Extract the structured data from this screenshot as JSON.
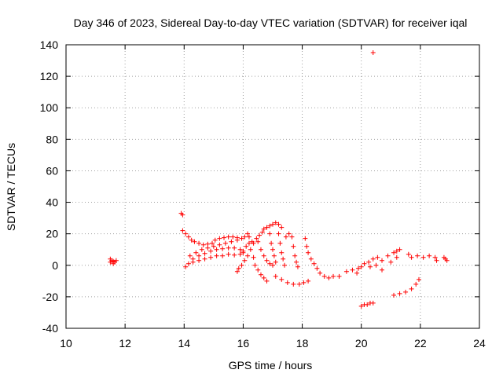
{
  "chart_data": {
    "type": "scatter",
    "title": "Day 346 of 2023, Sidereal Day-to-day VTEC variation (SDTVAR) for receiver iqal",
    "xlabel": "GPS time / hours",
    "ylabel": "SDTVAR / TECUs",
    "xlim": [
      10,
      24
    ],
    "ylim": [
      -40,
      140
    ],
    "xticks": [
      10,
      12,
      14,
      16,
      18,
      20,
      22,
      24
    ],
    "yticks": [
      -40,
      -20,
      0,
      20,
      40,
      60,
      80,
      100,
      120,
      140
    ],
    "grid": true,
    "marker": "plus",
    "color": "#ff0000",
    "series": [
      {
        "points": [
          [
            11.5,
            2
          ],
          [
            11.55,
            3
          ],
          [
            11.6,
            1
          ],
          [
            11.65,
            2
          ],
          [
            11.7,
            3
          ],
          [
            11.5,
            4
          ],
          [
            11.6,
            2.5
          ],
          [
            13.9,
            33
          ],
          [
            13.95,
            32
          ],
          [
            20.4,
            135
          ],
          [
            13.95,
            22
          ],
          [
            14.05,
            20
          ],
          [
            14.15,
            18
          ],
          [
            14.25,
            16
          ],
          [
            14.35,
            15
          ],
          [
            14.5,
            14
          ],
          [
            14.65,
            13
          ],
          [
            14.8,
            13.5
          ],
          [
            14.95,
            14
          ],
          [
            15.05,
            16
          ],
          [
            15.2,
            17
          ],
          [
            15.35,
            17.5
          ],
          [
            15.5,
            18
          ],
          [
            15.65,
            18
          ],
          [
            15.8,
            17.5
          ],
          [
            15.95,
            17
          ],
          [
            16.05,
            18
          ],
          [
            16.15,
            20
          ],
          [
            16.2,
            18
          ],
          [
            14.2,
            6
          ],
          [
            14.4,
            8
          ],
          [
            14.6,
            10
          ],
          [
            14.8,
            11
          ],
          [
            15.0,
            12
          ],
          [
            15.2,
            13
          ],
          [
            15.4,
            14
          ],
          [
            15.6,
            15
          ],
          [
            15.8,
            16
          ],
          [
            14.3,
            4
          ],
          [
            14.5,
            6
          ],
          [
            14.7,
            7.5
          ],
          [
            14.9,
            9
          ],
          [
            15.1,
            10
          ],
          [
            15.3,
            10.5
          ],
          [
            15.5,
            11
          ],
          [
            15.7,
            11
          ],
          [
            15.9,
            10
          ],
          [
            16.0,
            8
          ],
          [
            14.05,
            -1
          ],
          [
            14.15,
            1
          ],
          [
            14.3,
            2
          ],
          [
            14.5,
            3
          ],
          [
            14.7,
            4
          ],
          [
            14.9,
            5
          ],
          [
            15.1,
            6
          ],
          [
            15.3,
            6
          ],
          [
            15.5,
            7
          ],
          [
            15.7,
            6.5
          ],
          [
            15.9,
            7
          ],
          [
            16.0,
            9
          ],
          [
            16.1,
            12
          ],
          [
            16.2,
            14
          ],
          [
            16.3,
            15
          ],
          [
            15.8,
            -4
          ],
          [
            15.85,
            -2
          ],
          [
            15.95,
            0
          ],
          [
            16.05,
            3
          ],
          [
            16.15,
            6
          ],
          [
            16.25,
            10
          ],
          [
            16.35,
            14
          ],
          [
            16.45,
            17
          ],
          [
            16.55,
            19
          ],
          [
            16.65,
            21
          ],
          [
            16.7,
            23
          ],
          [
            16.8,
            24
          ],
          [
            16.9,
            25
          ],
          [
            17.0,
            26
          ],
          [
            17.1,
            27
          ],
          [
            17.2,
            26
          ],
          [
            17.3,
            24
          ],
          [
            16.35,
            5
          ],
          [
            16.4,
            0
          ],
          [
            16.5,
            -3
          ],
          [
            16.6,
            -6
          ],
          [
            16.7,
            -8
          ],
          [
            16.8,
            -10
          ],
          [
            16.5,
            15
          ],
          [
            16.6,
            10
          ],
          [
            16.7,
            6
          ],
          [
            16.8,
            3
          ],
          [
            16.9,
            1
          ],
          [
            17.0,
            0
          ],
          [
            16.9,
            20
          ],
          [
            16.95,
            14
          ],
          [
            17.0,
            10
          ],
          [
            17.05,
            6
          ],
          [
            17.1,
            2
          ],
          [
            17.2,
            20
          ],
          [
            17.25,
            14
          ],
          [
            17.3,
            8
          ],
          [
            17.35,
            4
          ],
          [
            17.4,
            0
          ],
          [
            17.45,
            18
          ],
          [
            17.55,
            20
          ],
          [
            17.65,
            18
          ],
          [
            17.7,
            12
          ],
          [
            17.75,
            6
          ],
          [
            17.8,
            2
          ],
          [
            17.85,
            -1
          ],
          [
            17.1,
            -7
          ],
          [
            17.3,
            -9
          ],
          [
            17.5,
            -11
          ],
          [
            17.7,
            -12
          ],
          [
            17.9,
            -12
          ],
          [
            18.05,
            -11
          ],
          [
            18.2,
            -10
          ],
          [
            18.1,
            17
          ],
          [
            18.15,
            12
          ],
          [
            18.2,
            8
          ],
          [
            18.3,
            4
          ],
          [
            18.4,
            1
          ],
          [
            18.5,
            -2
          ],
          [
            18.6,
            -5
          ],
          [
            18.75,
            -7
          ],
          [
            18.9,
            -8
          ],
          [
            19.05,
            -7
          ],
          [
            19.25,
            -7
          ],
          [
            19.5,
            -4
          ],
          [
            19.7,
            -3
          ],
          [
            19.85,
            -5
          ],
          [
            19.9,
            -2
          ],
          [
            20.0,
            -1
          ],
          [
            20.1,
            1
          ],
          [
            20.25,
            2
          ],
          [
            20.4,
            4
          ],
          [
            20.55,
            5
          ],
          [
            20.3,
            -1
          ],
          [
            20.5,
            0
          ],
          [
            20.7,
            3
          ],
          [
            20.9,
            6
          ],
          [
            21.1,
            8
          ],
          [
            21.2,
            9
          ],
          [
            21.3,
            10
          ],
          [
            20.7,
            -3
          ],
          [
            21.0,
            2
          ],
          [
            21.2,
            5
          ],
          [
            20.0,
            -26
          ],
          [
            20.1,
            -25
          ],
          [
            20.2,
            -25
          ],
          [
            20.3,
            -24
          ],
          [
            20.4,
            -24
          ],
          [
            21.1,
            -19
          ],
          [
            21.3,
            -18
          ],
          [
            21.5,
            -17
          ],
          [
            21.7,
            -15
          ],
          [
            21.85,
            -12
          ],
          [
            21.95,
            -9
          ],
          [
            21.6,
            7
          ],
          [
            21.7,
            5
          ],
          [
            21.9,
            6
          ],
          [
            22.1,
            5
          ],
          [
            22.3,
            6
          ],
          [
            22.5,
            5
          ],
          [
            22.55,
            3
          ],
          [
            22.8,
            5
          ],
          [
            22.85,
            4
          ],
          [
            22.9,
            3
          ]
        ]
      }
    ]
  }
}
